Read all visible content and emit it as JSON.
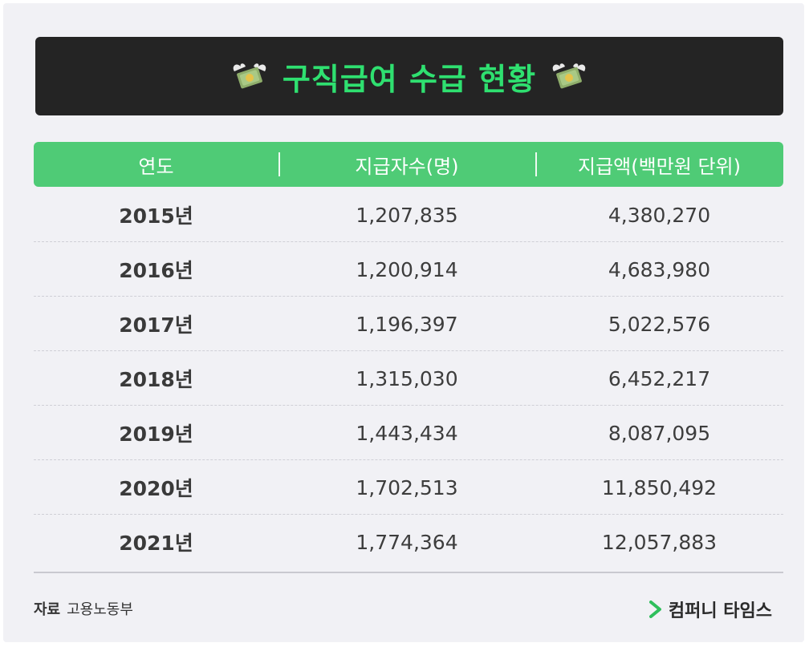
{
  "title": "구직급여 수급 현황",
  "icons": {
    "title_decoration": "flying-money-icon",
    "brand_mark": "chevron-right-icon"
  },
  "colors": {
    "title_bg": "#242424",
    "title_text": "#2fe070",
    "header_bg": "#4fcb76",
    "brand_mark": "#2fbf5c"
  },
  "table": {
    "headers": [
      "연도",
      "지급자수(명)",
      "지급액(백만원 단위)"
    ],
    "rows": [
      {
        "year": "2015년",
        "count": "1,207,835",
        "amount": "4,380,270"
      },
      {
        "year": "2016년",
        "count": "1,200,914",
        "amount": "4,683,980"
      },
      {
        "year": "2017년",
        "count": "1,196,397",
        "amount": "5,022,576"
      },
      {
        "year": "2018년",
        "count": "1,315,030",
        "amount": "6,452,217"
      },
      {
        "year": "2019년",
        "count": "1,443,434",
        "amount": "8,087,095"
      },
      {
        "year": "2020년",
        "count": "1,702,513",
        "amount": "11,850,492"
      },
      {
        "year": "2021년",
        "count": "1,774,364",
        "amount": "12,057,883"
      }
    ]
  },
  "footer": {
    "source_label": "자료",
    "source_value": "고용노동부",
    "brand": "컴퍼니 타임스"
  }
}
